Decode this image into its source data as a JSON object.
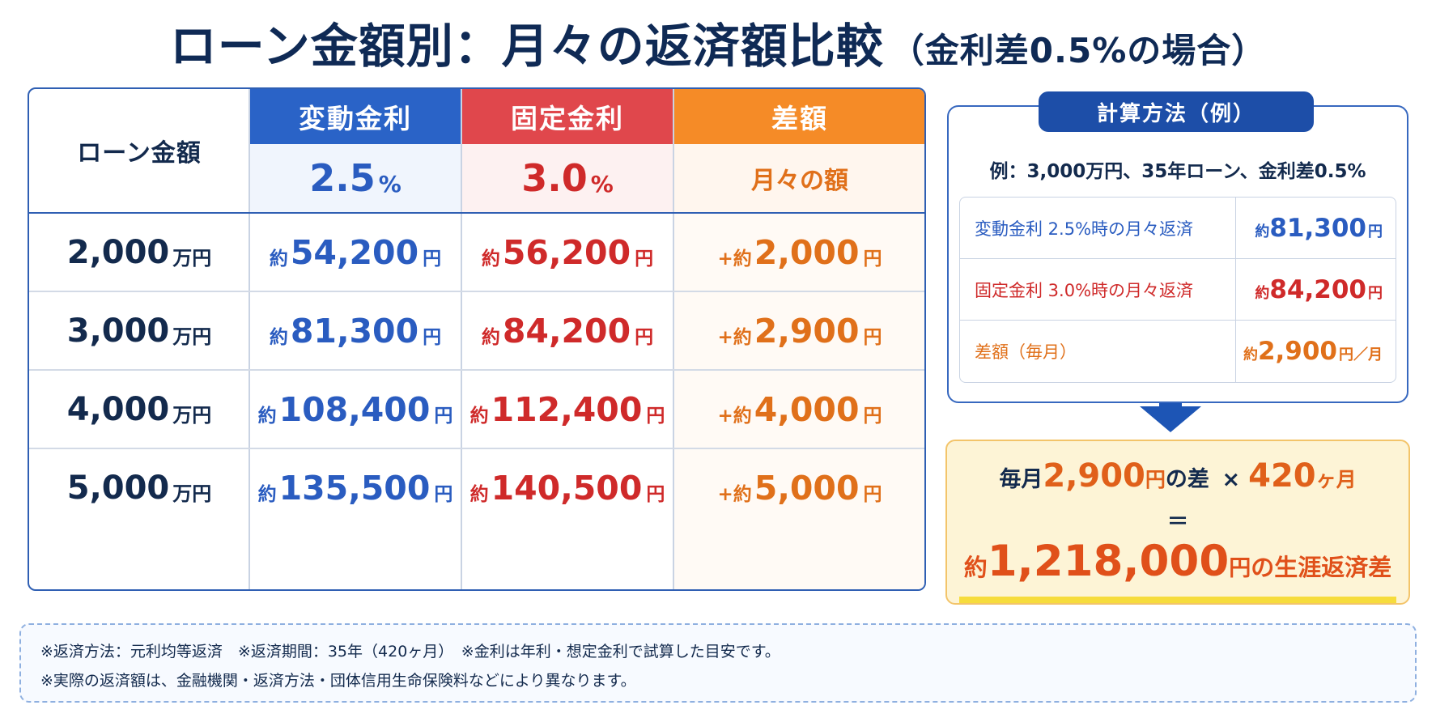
{
  "title": {
    "main": "ローン金額別：月々の返済額比較",
    "sub": "（金利差0.5%の場合）"
  },
  "table": {
    "loan_header": "ローン金額",
    "variable": {
      "label": "変動金利",
      "rate": "2.5",
      "pct": "%"
    },
    "fixed": {
      "label": "固定金利",
      "rate": "3.0",
      "pct": "%"
    },
    "difference": {
      "label": "差額",
      "sub": "月々の額"
    },
    "yaku": "約",
    "plus_yaku": "+約",
    "yen": "円",
    "man_yen": "万円",
    "rows": [
      {
        "loan": "2,000",
        "variable": "54,200",
        "fixed": "56,200",
        "difference": "2,000"
      },
      {
        "loan": "3,000",
        "variable": "81,300",
        "fixed": "84,200",
        "difference": "2,900"
      },
      {
        "loan": "4,000",
        "variable": "108,400",
        "fixed": "112,400",
        "difference": "4,000"
      },
      {
        "loan": "5,000",
        "variable": "135,500",
        "fixed": "140,500",
        "difference": "5,000"
      }
    ]
  },
  "calc": {
    "title": "計算方法（例）",
    "example": "例：3,000万円、35年ローン、金利差0.5%",
    "yaku": "約",
    "rows": [
      {
        "label": "変動金利 2.5%時の月々返済",
        "value": "81,300",
        "unit": "円"
      },
      {
        "label": "固定金利 3.0%時の月々返済",
        "value": "84,200",
        "unit": "円"
      },
      {
        "label": "差額（毎月）",
        "value": "2,900",
        "unit": "円／月"
      }
    ]
  },
  "result": {
    "monthly_prefix": "毎月",
    "monthly_value": "2,900",
    "monthly_unit": "円",
    "monthly_suffix": "の差",
    "times": "×",
    "months_value": "420",
    "months_unit": "ヶ月",
    "equals": "=",
    "total_prefix": "約",
    "total_value": "1,218,000",
    "total_unit": "円",
    "total_suffix": "の生涯返済差"
  },
  "notes": [
    "※返済方法：元利均等返済　※返済期間：35年（420ヶ月）　※金利は年利・想定金利で試算した目安です。",
    "※実際の返済額は、金融機関・返済方法・団体信用生命保険料などにより異なります。"
  ],
  "colors": {
    "variable": "#2a63c7",
    "fixed": "#e0474c",
    "difference": "#f58b27",
    "navy": "#0f2a55",
    "highlight": "#f6dc3c"
  }
}
